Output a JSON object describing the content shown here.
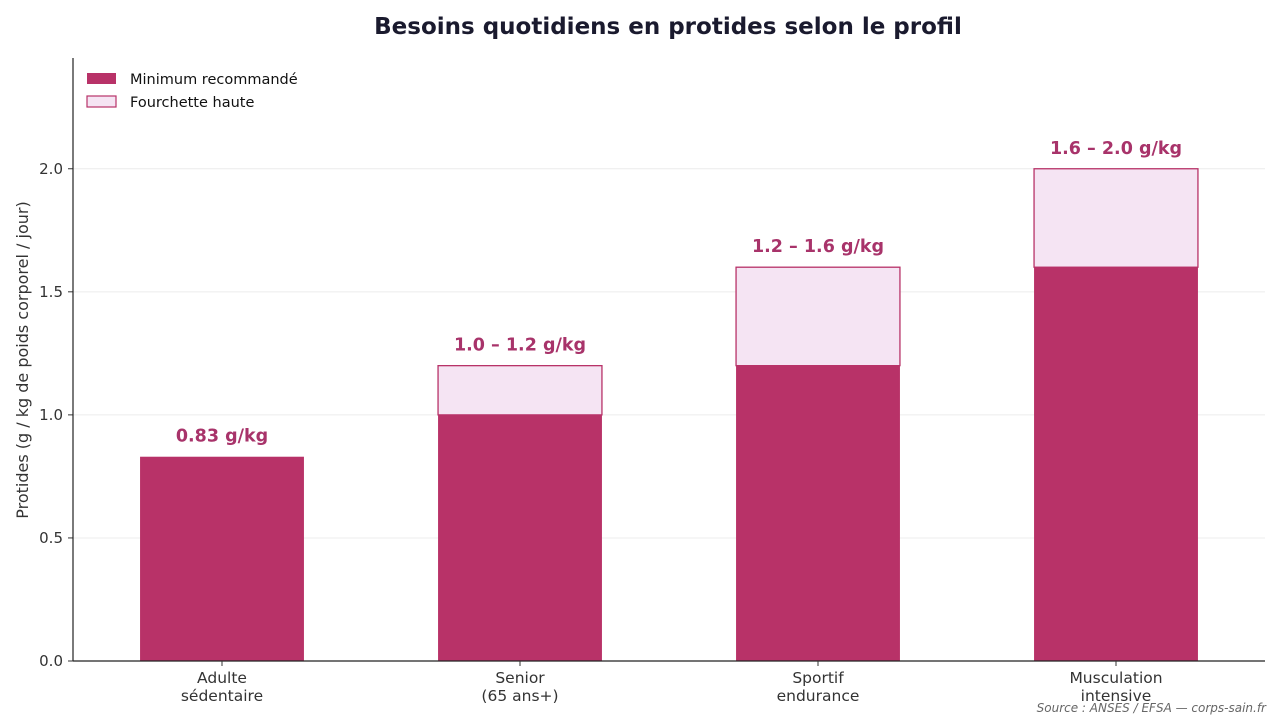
{
  "chart_data": {
    "type": "bar",
    "title": "Besoins quotidiens en protides selon le profil",
    "ylabel": "Protides (g / kg de poids corporel / jour)",
    "xlabel": "",
    "ylim": [
      0,
      2.45
    ],
    "yticks": [
      "0.0",
      "0.5",
      "1.0",
      "1.5",
      "2.0"
    ],
    "grid": "horizontal",
    "legend_position": "top-left",
    "categories": [
      [
        "Adulte",
        "sédentaire"
      ],
      [
        "Senior",
        "(65 ans+)"
      ],
      [
        "Sportif",
        "endurance"
      ],
      [
        "Musculation",
        "intensive"
      ]
    ],
    "series": [
      {
        "name": "Minimum recommandé",
        "values": [
          0.83,
          1.0,
          1.2,
          1.6
        ],
        "color": "#b83268"
      },
      {
        "name": "Fourchette haute",
        "values": [
          0.83,
          1.2,
          1.6,
          2.0
        ],
        "color": "#f5e4f3",
        "edge": "#b83268"
      }
    ],
    "data_labels": [
      "0.83 g/kg",
      "1.0 – 1.2 g/kg",
      "1.2 – 1.6 g/kg",
      "1.6 – 2.0 g/kg"
    ],
    "data_label_color": "#a8336a",
    "source": "Source : ANSES / EFSA — corps-sain.fr"
  }
}
